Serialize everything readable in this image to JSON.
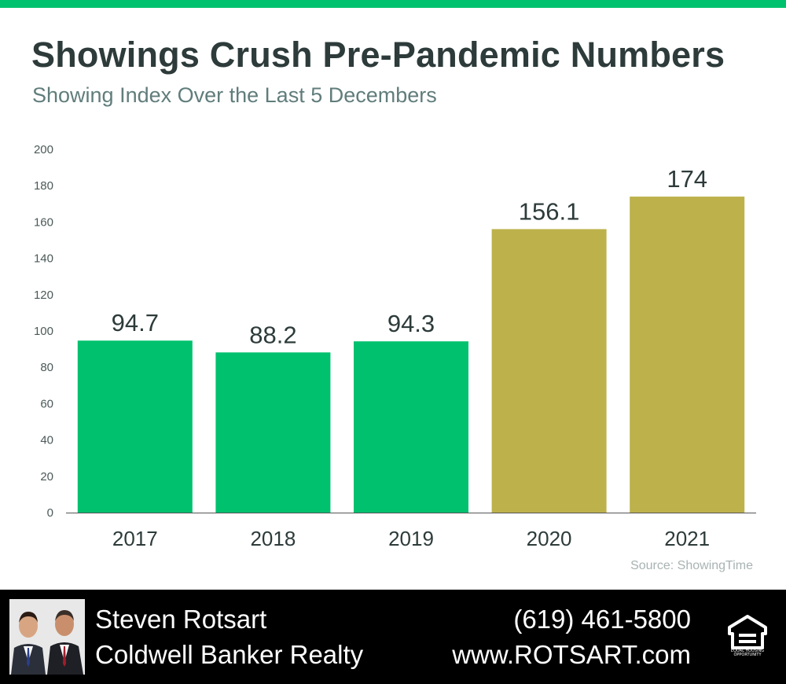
{
  "header": {
    "title": "Showings Crush Pre-Pandemic Numbers",
    "subtitle": "Showing Index Over the Last 5 Decembers"
  },
  "chart_data": {
    "type": "bar",
    "title": "Showings Crush Pre-Pandemic Numbers",
    "subtitle": "Showing Index Over the Last 5 Decembers",
    "xlabel": "",
    "ylabel": "",
    "categories": [
      "2017",
      "2018",
      "2019",
      "2020",
      "2021"
    ],
    "values": [
      94.7,
      88.2,
      94.3,
      156.1,
      174
    ],
    "value_labels": [
      "94.7",
      "88.2",
      "94.3",
      "156.1",
      "174"
    ],
    "bar_colors": [
      "#00c16e",
      "#00c16e",
      "#00c16e",
      "#bdb14c",
      "#bdb14c"
    ],
    "ylim": [
      0,
      200
    ],
    "yticks": [
      0,
      20,
      40,
      60,
      80,
      100,
      120,
      140,
      160,
      180,
      200
    ],
    "grid": false,
    "legend": "none"
  },
  "source": "Source: ShowingTime",
  "footer": {
    "agent_name": "Steven Rotsart",
    "brokerage": "Coldwell Banker Realty",
    "phone": "(619) 461-5800",
    "website": "www.ROTSART.com",
    "badge_text": "EQUAL HOUSING OPPORTUNITY",
    "background": "#000000",
    "accent": "#00c16e"
  }
}
